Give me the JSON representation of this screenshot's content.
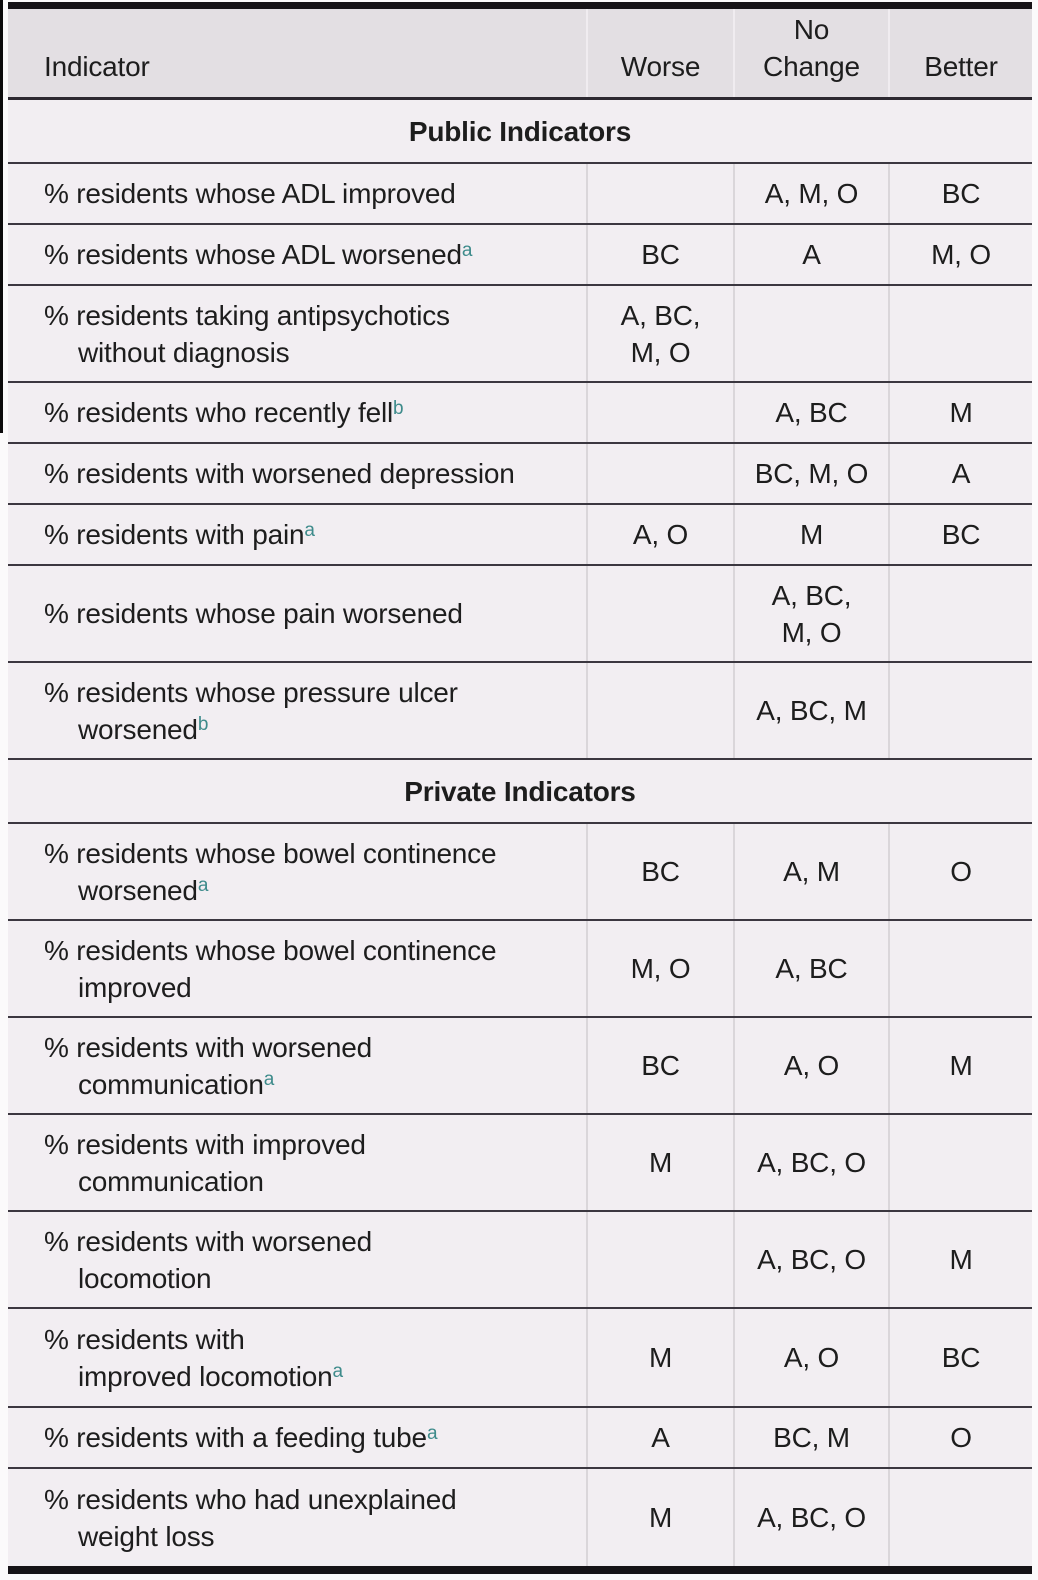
{
  "table": {
    "header": {
      "indicator": "Indicator",
      "worse": "Worse",
      "no_change": "No\nChange",
      "better": "Better"
    },
    "sections": [
      {
        "title": "Public Indicators",
        "rows": [
          {
            "indicator": "% residents whose ADL improved",
            "sup": "",
            "worse": "",
            "no_change": "A, M, O",
            "better": "BC"
          },
          {
            "indicator": "% residents whose ADL worsened",
            "sup": "a",
            "worse": "BC",
            "no_change": "A",
            "better": "M, O"
          },
          {
            "indicator": "% residents taking antipsychotics\nwithout diagnosis",
            "sup": "",
            "worse": "A, BC,\nM, O",
            "no_change": "",
            "better": ""
          },
          {
            "indicator": "% residents who recently fell",
            "sup": "b",
            "worse": "",
            "no_change": "A, BC",
            "better": "M"
          },
          {
            "indicator": "% residents with worsened depression",
            "sup": "",
            "worse": "",
            "no_change": "BC, M, O",
            "better": "A"
          },
          {
            "indicator": "% residents with pain",
            "sup": "a",
            "worse": "A, O",
            "no_change": "M",
            "better": "BC"
          },
          {
            "indicator": "% residents whose pain worsened",
            "sup": "",
            "worse": "",
            "no_change": "A, BC,\nM, O",
            "better": ""
          },
          {
            "indicator": "% residents whose pressure ulcer\nworsened",
            "sup": "b",
            "worse": "",
            "no_change": "A, BC, M",
            "better": ""
          }
        ]
      },
      {
        "title": "Private Indicators",
        "rows": [
          {
            "indicator": "% residents whose bowel continence\nworsened",
            "sup": "a",
            "worse": "BC",
            "no_change": "A, M",
            "better": "O"
          },
          {
            "indicator": "% residents whose bowel continence\nimproved",
            "sup": "",
            "worse": "M, O",
            "no_change": "A, BC",
            "better": ""
          },
          {
            "indicator": "% residents with worsened\ncommunication",
            "sup": "a",
            "worse": "BC",
            "no_change": "A, O",
            "better": "M"
          },
          {
            "indicator": "% residents with improved\ncommunication",
            "sup": "",
            "worse": "M",
            "no_change": "A, BC, O",
            "better": ""
          },
          {
            "indicator": "% residents with worsened\nlocomotion",
            "sup": "",
            "worse": "",
            "no_change": "A, BC, O",
            "better": "M"
          },
          {
            "indicator": "% residents with\nimproved locomotion",
            "sup": "a",
            "worse": "M",
            "no_change": "A, O",
            "better": "BC"
          },
          {
            "indicator": "% residents with a feeding tube",
            "sup": "a",
            "worse": "A",
            "no_change": "BC, M",
            "better": "O"
          },
          {
            "indicator": "% residents who had unexplained\nweight loss",
            "sup": "",
            "worse": "M",
            "no_change": "A, BC, O",
            "better": ""
          }
        ]
      }
    ]
  },
  "colors": {
    "superscript_accent": "#3e8b8b",
    "header_background": "#e3dfe3",
    "body_background": "#f2eef2",
    "rule_color": "#3b3740",
    "outer_border": "#161317",
    "text": "#1d1d1d"
  }
}
